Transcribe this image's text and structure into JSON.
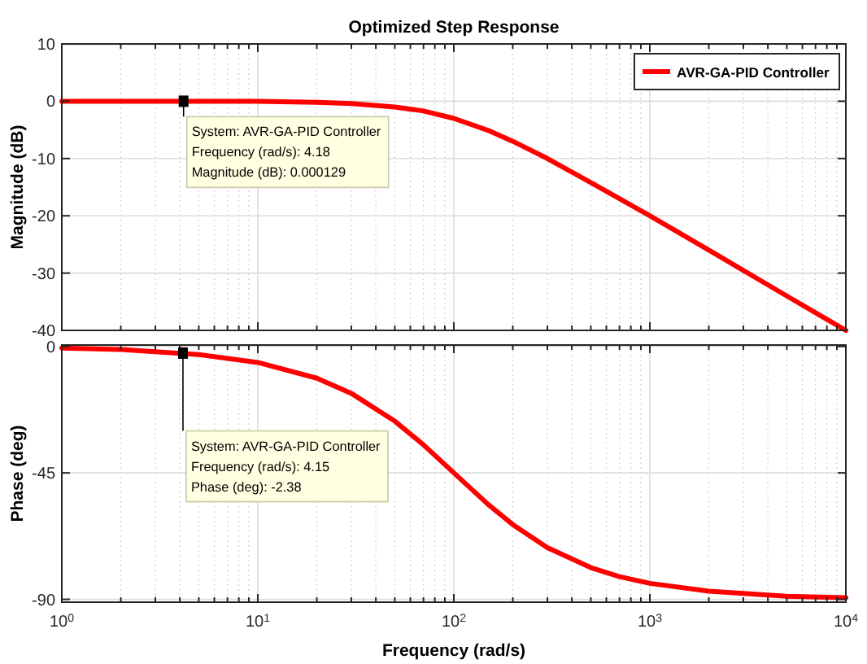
{
  "chart_data": [
    {
      "type": "line",
      "title": "Optimized Step Response",
      "ylabel": "Magnitude (dB)",
      "log": "x",
      "grid": true,
      "legend": "top right",
      "tick_labels": "y",
      "line_style": "solid",
      "marker": "none",
      "x": [
        1,
        2,
        5,
        10,
        20,
        30,
        50,
        70,
        100,
        150,
        200,
        300,
        500,
        700,
        1000,
        2000,
        5000,
        10000
      ],
      "series": [
        {
          "name": "AVR-GA-PID Controller",
          "color": "#ff0000",
          "values": [
            0,
            0,
            0,
            0,
            -0.2,
            -0.4,
            -1,
            -1.7,
            -3,
            -5.1,
            -7,
            -10,
            -14.2,
            -17,
            -20,
            -26,
            -34,
            -40
          ]
        }
      ],
      "xlim": [
        1,
        10000
      ],
      "xticks": [
        {
          "value": 1,
          "label": null
        },
        {
          "value": 2,
          "label": null
        },
        {
          "value": 3,
          "label": null
        },
        {
          "value": 4,
          "label": null
        },
        {
          "value": 5,
          "label": null
        },
        {
          "value": 6,
          "label": null
        },
        {
          "value": 7,
          "label": null
        },
        {
          "value": 8,
          "label": null
        },
        {
          "value": 9,
          "label": null
        },
        {
          "value": 10,
          "label": null
        },
        {
          "value": 20,
          "label": null
        },
        {
          "value": 30,
          "label": null
        },
        {
          "value": 40,
          "label": null
        },
        {
          "value": 50,
          "label": null
        },
        {
          "value": 60,
          "label": null
        },
        {
          "value": 70,
          "label": null
        },
        {
          "value": 80,
          "label": null
        },
        {
          "value": 90,
          "label": null
        },
        {
          "value": 100,
          "label": null
        },
        {
          "value": 200,
          "label": null
        },
        {
          "value": 300,
          "label": null
        },
        {
          "value": 400,
          "label": null
        },
        {
          "value": 500,
          "label": null
        },
        {
          "value": 600,
          "label": null
        },
        {
          "value": 700,
          "label": null
        },
        {
          "value": 800,
          "label": null
        },
        {
          "value": 900,
          "label": null
        },
        {
          "value": 1000,
          "label": null
        },
        {
          "value": 2000,
          "label": null
        },
        {
          "value": 3000,
          "label": null
        },
        {
          "value": 4000,
          "label": null
        },
        {
          "value": 5000,
          "label": null
        },
        {
          "value": 6000,
          "label": null
        },
        {
          "value": 7000,
          "label": null
        },
        {
          "value": 8000,
          "label": null
        },
        {
          "value": 9000,
          "label": null
        },
        {
          "value": 10000,
          "label": null
        }
      ],
      "ylim": [
        -40,
        10
      ],
      "yticks": [
        -40,
        -30,
        -20,
        -10,
        0,
        10
      ],
      "annotations": [
        {
          "text": "System: AVR-GA-PID Controller\nFrequency (rad/s): 4.18\nMagnitude (dB): 0.000129",
          "x": 4.18,
          "y": 0.000129
        }
      ]
    },
    {
      "type": "line",
      "xlabel": "Frequency  (rad/s)",
      "ylabel": "Phase (deg)",
      "log": "x",
      "grid": true,
      "line_style": "solid",
      "marker": "none",
      "x": [
        1,
        2,
        5,
        10,
        20,
        30,
        50,
        70,
        100,
        150,
        200,
        300,
        500,
        700,
        1000,
        2000,
        5000,
        10000
      ],
      "series": [
        {
          "color": "#ff0000",
          "values": [
            -0.6,
            -1.1,
            -2.9,
            -5.7,
            -11.3,
            -16.7,
            -26.6,
            -35,
            -45,
            -56.3,
            -63.4,
            -71.6,
            -78.7,
            -81.9,
            -84.3,
            -87.1,
            -88.9,
            -89.4
          ]
        }
      ],
      "xlim": [
        1,
        10000
      ],
      "xticks": [
        {
          "value": 1,
          "label": "10$^{0}$"
        },
        {
          "value": 2,
          "label": null
        },
        {
          "value": 3,
          "label": null
        },
        {
          "value": 4,
          "label": null
        },
        {
          "value": 5,
          "label": null
        },
        {
          "value": 6,
          "label": null
        },
        {
          "value": 7,
          "label": null
        },
        {
          "value": 8,
          "label": null
        },
        {
          "value": 9,
          "label": null
        },
        {
          "value": 10,
          "label": "10$^{1}$"
        },
        {
          "value": 20,
          "label": null
        },
        {
          "value": 30,
          "label": null
        },
        {
          "value": 40,
          "label": null
        },
        {
          "value": 50,
          "label": null
        },
        {
          "value": 60,
          "label": null
        },
        {
          "value": 70,
          "label": null
        },
        {
          "value": 80,
          "label": null
        },
        {
          "value": 90,
          "label": null
        },
        {
          "value": 100,
          "label": "10$^{2}$"
        },
        {
          "value": 200,
          "label": null
        },
        {
          "value": 300,
          "label": null
        },
        {
          "value": 400,
          "label": null
        },
        {
          "value": 500,
          "label": null
        },
        {
          "value": 600,
          "label": null
        },
        {
          "value": 700,
          "label": null
        },
        {
          "value": 800,
          "label": null
        },
        {
          "value": 900,
          "label": null
        },
        {
          "value": 1000,
          "label": "10$^{3}$"
        },
        {
          "value": 2000,
          "label": null
        },
        {
          "value": 3000,
          "label": null
        },
        {
          "value": 4000,
          "label": null
        },
        {
          "value": 5000,
          "label": null
        },
        {
          "value": 6000,
          "label": null
        },
        {
          "value": 7000,
          "label": null
        },
        {
          "value": 8000,
          "label": null
        },
        {
          "value": 9000,
          "label": null
        },
        {
          "value": 10000,
          "label": "10$^{4}$"
        }
      ],
      "ylim": [
        -91,
        0.5
      ],
      "yticks": [
        -90,
        -45,
        0
      ],
      "annotations": [
        {
          "text": "System: AVR-GA-PID Controller\nFrequency (rad/s): 4.15\nPhase (deg): -2.38",
          "x": 4.15,
          "y": -2.38
        }
      ]
    }
  ]
}
